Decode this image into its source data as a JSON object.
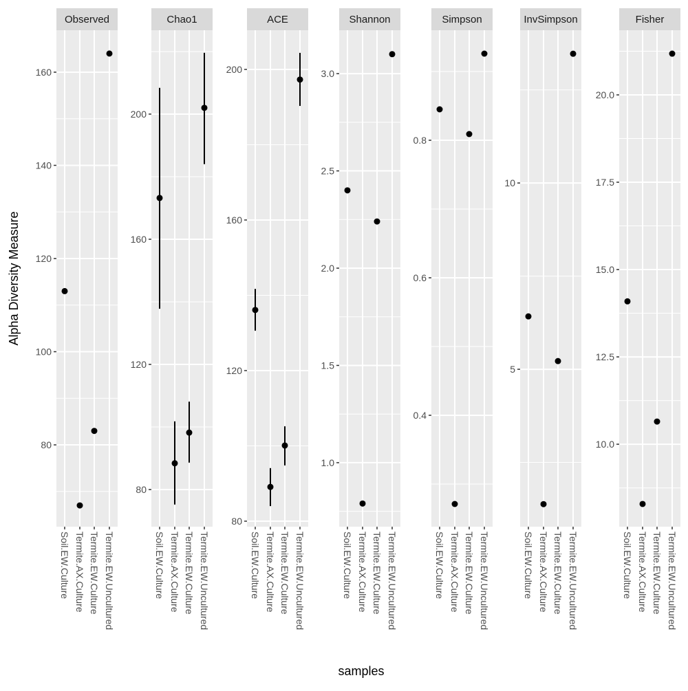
{
  "chart_data": {
    "type": "scatter",
    "title": "",
    "xlabel": "samples",
    "ylabel": "Alpha Diversity Measure",
    "grid": true,
    "legend": "none",
    "categories": [
      "Soil.EW.Culture",
      "Termite.AX.Culture",
      "Termite.EW.Culture",
      "Termite.EW.Uncultured"
    ],
    "panels": [
      {
        "name": "Observed",
        "ylim": [
          62.44,
          169.0
        ],
        "yticks": [
          80,
          100,
          120,
          140,
          160
        ],
        "ytick_labels": [
          "80",
          "100",
          "120",
          "140",
          "160"
        ],
        "minor_yticks": [
          70,
          90,
          110,
          130,
          150
        ],
        "values": [
          113,
          67,
          83,
          164
        ],
        "error_low": null,
        "error_high": null
      },
      {
        "name": "Chao1",
        "ylim": [
          68.13,
          226.8
        ],
        "yticks": [
          80,
          120,
          160,
          200
        ],
        "ytick_labels": [
          "80",
          "120",
          "160",
          "200"
        ],
        "minor_yticks": [
          100,
          140,
          180,
          220
        ],
        "values": [
          173.2,
          88.4,
          98.2,
          202.0
        ],
        "error_low": [
          137.8,
          75.2,
          88.6,
          184.0
        ],
        "error_high": [
          208.4,
          101.8,
          108.1,
          219.6
        ]
      },
      {
        "name": "ACE",
        "ylim": [
          78.54,
          210.4
        ],
        "yticks": [
          80,
          120,
          160,
          200
        ],
        "ytick_labels": [
          "80",
          "120",
          "160",
          "200"
        ],
        "minor_yticks": [
          100,
          140,
          180
        ],
        "values": [
          136.1,
          89.1,
          100.1,
          197.3
        ],
        "error_low": [
          130.6,
          84.0,
          94.8,
          190.3
        ],
        "error_high": [
          141.7,
          94.1,
          105.2,
          204.4
        ]
      },
      {
        "name": "Shannon",
        "ylim": [
          0.671,
          3.223
        ],
        "yticks": [
          1.0,
          1.5,
          2.0,
          2.5,
          3.0
        ],
        "ytick_labels": [
          "1.0",
          "1.5",
          "2.0",
          "2.5",
          "3.0"
        ],
        "minor_yticks": [
          0.75,
          1.25,
          1.75,
          2.25,
          2.75
        ],
        "values": [
          2.4,
          0.79,
          2.24,
          3.1
        ],
        "error_low": null,
        "error_high": null
      },
      {
        "name": "Simpson",
        "ylim": [
          0.238,
          0.96
        ],
        "yticks": [
          0.4,
          0.6,
          0.8
        ],
        "ytick_labels": [
          "0.4",
          "0.6",
          "0.8"
        ],
        "minor_yticks": [
          0.3,
          0.5,
          0.7,
          0.9
        ],
        "values": [
          0.845,
          0.271,
          0.809,
          0.926
        ],
        "error_low": null,
        "error_high": null
      },
      {
        "name": "InvSimpson",
        "ylim": [
          0.775,
          14.1
        ],
        "yticks": [
          5,
          10
        ],
        "ytick_labels": [
          "5",
          "10"
        ],
        "minor_yticks": [
          2.5,
          7.5,
          12.5
        ],
        "values": [
          6.42,
          1.38,
          5.22,
          13.47
        ],
        "error_low": null,
        "error_high": null
      },
      {
        "name": "Fisher",
        "ylim": [
          7.64,
          21.85
        ],
        "yticks": [
          10.0,
          12.5,
          15.0,
          17.5,
          20.0
        ],
        "ytick_labels": [
          "10.0",
          "12.5",
          "15.0",
          "17.5",
          "20.0"
        ],
        "minor_yticks": [
          8.75,
          11.25,
          13.75,
          16.25,
          18.75,
          21.25
        ],
        "values": [
          14.09,
          8.29,
          10.65,
          21.18
        ],
        "error_low": null,
        "error_high": null
      }
    ]
  },
  "colors": {
    "panel_background": "#ebebeb",
    "strip_background": "#d9d9d9",
    "grid": "#ffffff",
    "points": "#000000",
    "tick_text": "#4d4d4d"
  }
}
